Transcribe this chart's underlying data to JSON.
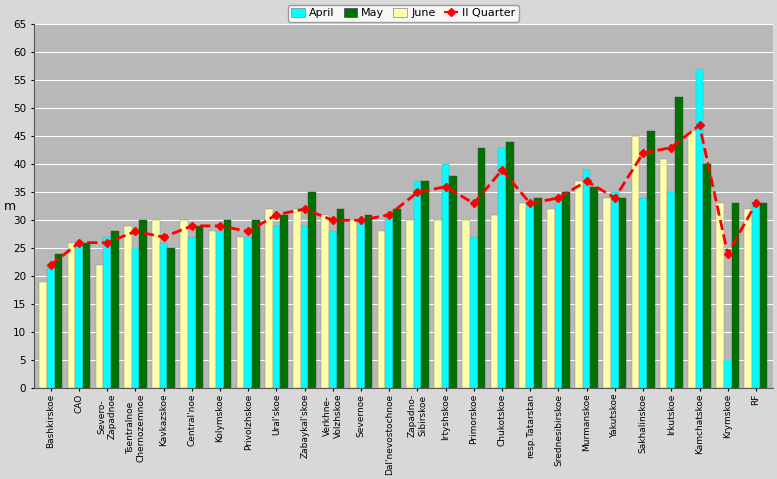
{
  "categories": [
    "Bashkirskoe",
    "CAO",
    "Severo-\nZapadnoe",
    "Tsentralnoe\nChernozemnoe",
    "Kavkazskoe",
    "Central'noe",
    "Kolymskoe",
    "Privolzhskoe",
    "Ural'skoe",
    "Zabaykal'skoe",
    "Verkhne-\nVolzhskoe",
    "Severnoe",
    "Dal'nevostochnoe",
    "Zapadno-\nSibirskoe",
    "Irtyshskoe",
    "Primorskoe",
    "Chukotskoe",
    "resp.Tatarstan",
    "Srednesibirskoe",
    "Murmanskoe",
    "Yakutskoe",
    "Sakhalinskoe",
    "Irkutskoe",
    "Kamchatskoe",
    "Krymskoe",
    "RF"
  ],
  "april": [
    22,
    26,
    27,
    25,
    26,
    27,
    28,
    27,
    29,
    29,
    28,
    30,
    31,
    37,
    40,
    27,
    43,
    33,
    34,
    39,
    35,
    34,
    35,
    57,
    5,
    33
  ],
  "may": [
    24,
    26,
    28,
    30,
    25,
    29,
    30,
    30,
    31,
    35,
    32,
    31,
    32,
    37,
    38,
    43,
    44,
    34,
    35,
    36,
    34,
    46,
    52,
    40,
    33,
    33
  ],
  "june": [
    19,
    26,
    22,
    29,
    30,
    30,
    28,
    27,
    32,
    32,
    31,
    30,
    28,
    30,
    30,
    30,
    31,
    33,
    32,
    37,
    34,
    45,
    41,
    46,
    33,
    32
  ],
  "quarter": [
    22,
    26,
    26,
    28,
    27,
    29,
    29,
    28,
    31,
    32,
    30,
    30,
    31,
    35,
    36,
    33,
    39,
    33,
    34,
    37,
    34,
    42,
    43,
    47,
    24,
    33
  ],
  "bar_width": 0.27,
  "april_color": "#00FFFF",
  "may_color": "#007000",
  "june_color": "#FFFFAA",
  "quarter_color": "#FF0000",
  "bg_color": "#B8B8B8",
  "plot_bg_color": "#B8B8B8",
  "fig_bg_color": "#D8D8D8",
  "ylim": [
    0,
    65
  ],
  "yticks": [
    0,
    5,
    10,
    15,
    20,
    25,
    30,
    35,
    40,
    45,
    50,
    55,
    60,
    65
  ],
  "ylabel": "m",
  "legend_labels": [
    "April",
    "May",
    "June",
    "II Quarter"
  ]
}
